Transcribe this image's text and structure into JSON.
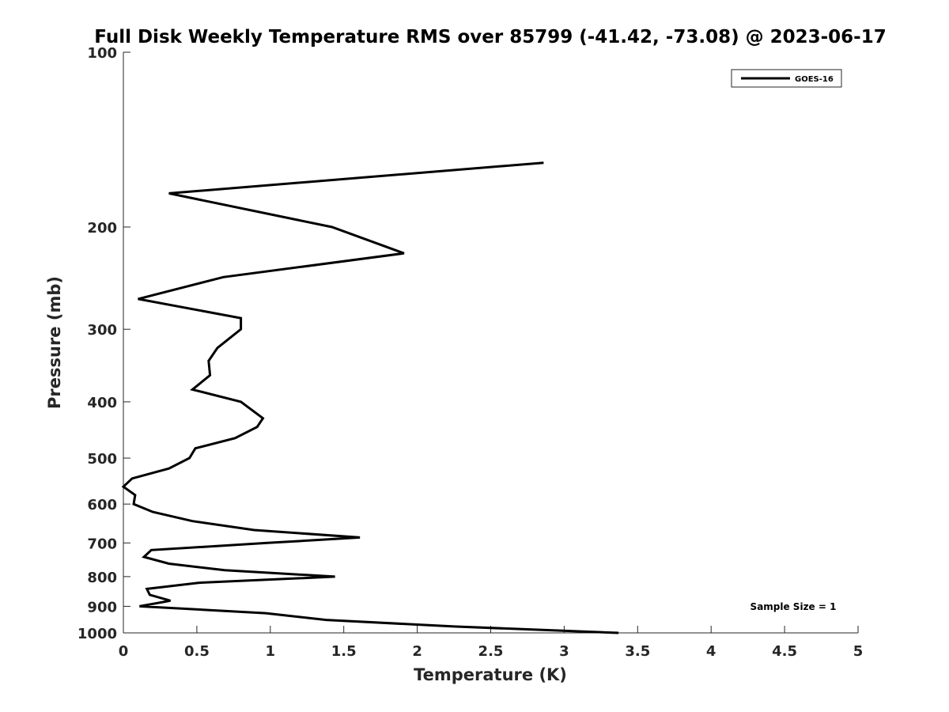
{
  "chart_data": {
    "type": "line",
    "title": "Full Disk Weekly Temperature RMS over 85799 (-41.42, -73.08) @ 2023-06-17",
    "xlabel": "Temperature (K)",
    "ylabel": "Pressure (mb)",
    "xlim": [
      0,
      5
    ],
    "ylim": [
      100,
      1000
    ],
    "y_scale": "log",
    "y_reversed": true,
    "grid": false,
    "x_ticks": [
      "0",
      "0.5",
      "1",
      "1.5",
      "2",
      "2.5",
      "3",
      "3.5",
      "4",
      "4.5",
      "5"
    ],
    "y_ticks": [
      "100",
      "200",
      "300",
      "400",
      "500",
      "600",
      "700",
      "800",
      "900",
      "1000"
    ],
    "legend_position": "top-right",
    "annotation": "Sample Size = 1",
    "series": [
      {
        "name": "GOES-16",
        "color": "#000000",
        "points": [
          [
            2.86,
            155
          ],
          [
            0.31,
            175
          ],
          [
            1.42,
            200
          ],
          [
            1.91,
            222
          ],
          [
            0.68,
            244
          ],
          [
            0.1,
            266
          ],
          [
            0.8,
            287
          ],
          [
            0.8,
            300
          ],
          [
            0.64,
            323
          ],
          [
            0.58,
            340
          ],
          [
            0.59,
            360
          ],
          [
            0.47,
            381
          ],
          [
            0.8,
            400
          ],
          [
            0.95,
            427
          ],
          [
            0.91,
            442
          ],
          [
            0.76,
            462
          ],
          [
            0.49,
            481
          ],
          [
            0.45,
            500
          ],
          [
            0.31,
            521
          ],
          [
            0.06,
            542
          ],
          [
            0.0,
            560
          ],
          [
            0.08,
            579
          ],
          [
            0.07,
            600
          ],
          [
            0.2,
            619
          ],
          [
            0.47,
            642
          ],
          [
            0.89,
            665
          ],
          [
            1.61,
            685
          ],
          [
            0.98,
            700
          ],
          [
            0.19,
            720
          ],
          [
            0.14,
            740
          ],
          [
            0.31,
            760
          ],
          [
            0.69,
            780
          ],
          [
            1.44,
            800
          ],
          [
            0.51,
            820
          ],
          [
            0.16,
            840
          ],
          [
            0.18,
            860
          ],
          [
            0.32,
            880
          ],
          [
            0.11,
            900
          ],
          [
            0.97,
            925
          ],
          [
            1.38,
            950
          ],
          [
            2.25,
            975
          ],
          [
            3.37,
            1000
          ]
        ]
      }
    ]
  }
}
